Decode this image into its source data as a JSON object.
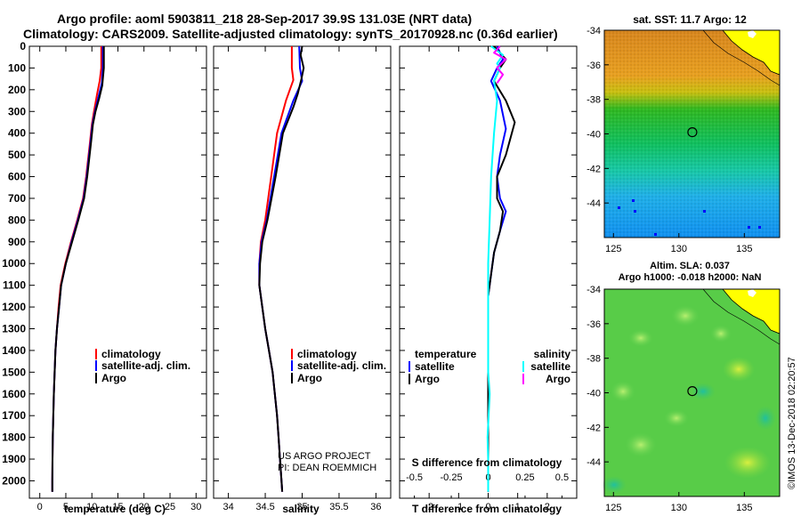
{
  "header": {
    "line1": "Argo profile: aoml 5903811_218 28-Sep-2017 39.9S 131.03E (NRT data)",
    "line2": "Climatology: CARS2009. Satellite-adjusted climatology: synTS_20170928.nc (0.36d earlier)"
  },
  "credit": {
    "line1": "US ARGO PROJECT",
    "line2": "PI: DEAN ROEMMICH"
  },
  "watermark": "©IMOS 13-Dec-2018 02:20:57",
  "colors": {
    "climatology": "#ff0000",
    "satellite": "#0000ff",
    "argo": "#000000",
    "sat_salinity": "#00ffff",
    "argo_salinity": "#ff00ff"
  },
  "chart_data": [
    {
      "type": "line",
      "id": "temperature",
      "xlabel": "temperature (deg C)",
      "ylabel": "pressure",
      "xlim": [
        -2,
        32
      ],
      "ylim": [
        0,
        2080
      ],
      "xticks": [
        0,
        5,
        10,
        15,
        20,
        25,
        30
      ],
      "yticks": [
        0,
        100,
        200,
        300,
        400,
        500,
        600,
        700,
        800,
        900,
        1000,
        1100,
        1200,
        1300,
        1400,
        1500,
        1600,
        1700,
        1800,
        1900,
        2000
      ],
      "legend": [
        "climatology",
        "satellite-adj. clim.",
        "Argo"
      ],
      "series": [
        {
          "name": "climatology",
          "points": [
            [
              11.8,
              0
            ],
            [
              11.8,
              100
            ],
            [
              11.5,
              160
            ],
            [
              11.0,
              220
            ],
            [
              10.4,
              300
            ],
            [
              10.0,
              360
            ],
            [
              9.6,
              450
            ],
            [
              8.9,
              600
            ],
            [
              8.3,
              700
            ],
            [
              7.2,
              800
            ],
            [
              6.0,
              900
            ],
            [
              4.9,
              1000
            ],
            [
              4.0,
              1100
            ],
            [
              3.6,
              1200
            ],
            [
              3.3,
              1300
            ],
            [
              3.0,
              1400
            ],
            [
              2.85,
              1500
            ],
            [
              2.7,
              1600
            ],
            [
              2.6,
              1700
            ],
            [
              2.5,
              1800
            ],
            [
              2.45,
              1900
            ],
            [
              2.4,
              2000
            ],
            [
              2.4,
              2050
            ]
          ]
        },
        {
          "name": "satellite-adj. clim.",
          "points": [
            [
              12.1,
              0
            ],
            [
              12.1,
              100
            ],
            [
              11.9,
              170
            ],
            [
              11.3,
              230
            ],
            [
              10.6,
              300
            ],
            [
              10.1,
              360
            ],
            [
              9.7,
              450
            ],
            [
              9.0,
              600
            ],
            [
              8.4,
              700
            ],
            [
              7.3,
              800
            ],
            [
              6.1,
              900
            ],
            [
              5.0,
              1000
            ],
            [
              4.1,
              1100
            ],
            [
              3.7,
              1200
            ],
            [
              3.3,
              1300
            ],
            [
              3.0,
              1400
            ],
            [
              2.85,
              1500
            ],
            [
              2.7,
              1600
            ],
            [
              2.6,
              1700
            ],
            [
              2.5,
              1800
            ],
            [
              2.45,
              1900
            ],
            [
              2.4,
              2000
            ],
            [
              2.4,
              2050
            ]
          ]
        },
        {
          "name": "Argo",
          "points": [
            [
              12.3,
              0
            ],
            [
              12.3,
              100
            ],
            [
              12.0,
              180
            ],
            [
              11.4,
              240
            ],
            [
              10.7,
              300
            ],
            [
              10.2,
              360
            ],
            [
              9.8,
              450
            ],
            [
              9.1,
              600
            ],
            [
              8.5,
              700
            ],
            [
              7.4,
              800
            ],
            [
              6.2,
              900
            ],
            [
              5.0,
              1000
            ],
            [
              4.1,
              1100
            ],
            [
              3.7,
              1200
            ],
            [
              3.3,
              1300
            ],
            [
              3.0,
              1400
            ],
            [
              2.85,
              1500
            ],
            [
              2.7,
              1600
            ],
            [
              2.6,
              1700
            ],
            [
              2.5,
              1800
            ],
            [
              2.45,
              1900
            ],
            [
              2.4,
              2000
            ],
            [
              2.4,
              2050
            ]
          ]
        }
      ]
    },
    {
      "type": "line",
      "id": "salinity",
      "xlabel": "salinity",
      "xlim": [
        33.8,
        36.2
      ],
      "ylim": [
        0,
        2080
      ],
      "xticks": [
        34,
        34.5,
        35,
        35.5,
        36
      ],
      "legend": [
        "climatology",
        "satellite-adj. clim.",
        "Argo"
      ],
      "series": [
        {
          "name": "climatology",
          "points": [
            [
              34.86,
              0
            ],
            [
              34.86,
              100
            ],
            [
              34.88,
              155
            ],
            [
              34.78,
              250
            ],
            [
              34.66,
              400
            ],
            [
              34.58,
              600
            ],
            [
              34.5,
              800
            ],
            [
              34.44,
              900
            ],
            [
              34.42,
              1000
            ],
            [
              34.42,
              1100
            ],
            [
              34.46,
              1200
            ],
            [
              34.5,
              1300
            ],
            [
              34.55,
              1400
            ],
            [
              34.6,
              1500
            ],
            [
              34.63,
              1600
            ],
            [
              34.66,
              1700
            ],
            [
              34.68,
              1800
            ],
            [
              34.7,
              1900
            ],
            [
              34.72,
              2000
            ],
            [
              34.73,
              2050
            ]
          ]
        },
        {
          "name": "satellite-adj. clim.",
          "points": [
            [
              34.96,
              0
            ],
            [
              34.97,
              100
            ],
            [
              35.0,
              160
            ],
            [
              34.88,
              250
            ],
            [
              34.72,
              400
            ],
            [
              34.62,
              600
            ],
            [
              34.52,
              800
            ],
            [
              34.45,
              900
            ],
            [
              34.42,
              1000
            ],
            [
              34.42,
              1100
            ],
            [
              34.46,
              1200
            ],
            [
              34.5,
              1300
            ],
            [
              34.55,
              1400
            ],
            [
              34.6,
              1500
            ],
            [
              34.63,
              1600
            ],
            [
              34.66,
              1700
            ],
            [
              34.68,
              1800
            ],
            [
              34.7,
              1900
            ],
            [
              34.72,
              2000
            ],
            [
              34.73,
              2050
            ]
          ]
        },
        {
          "name": "Argo",
          "points": [
            [
              35.0,
              0
            ],
            [
              34.98,
              40
            ],
            [
              35.02,
              100
            ],
            [
              34.99,
              150
            ],
            [
              34.94,
              220
            ],
            [
              34.88,
              280
            ],
            [
              34.74,
              400
            ],
            [
              34.64,
              600
            ],
            [
              34.53,
              800
            ],
            [
              34.46,
              900
            ],
            [
              34.43,
              1000
            ],
            [
              34.42,
              1100
            ],
            [
              34.46,
              1200
            ],
            [
              34.5,
              1300
            ],
            [
              34.55,
              1400
            ],
            [
              34.6,
              1500
            ],
            [
              34.63,
              1600
            ],
            [
              34.66,
              1700
            ],
            [
              34.68,
              1800
            ],
            [
              34.7,
              1900
            ],
            [
              34.72,
              2000
            ],
            [
              34.73,
              2050
            ]
          ]
        }
      ]
    },
    {
      "type": "line",
      "id": "difference",
      "xlabel": "T difference from climatology",
      "xlabel2": "S difference from climatology",
      "xlim": [
        -3,
        3
      ],
      "ylim": [
        0,
        2080
      ],
      "xticks": [
        -2,
        -1,
        0,
        1,
        2
      ],
      "xticks2": [
        -0.5,
        -0.25,
        0,
        0.25,
        0.5
      ],
      "xtick2_labels": [
        "-0.5",
        "-0.25",
        "0",
        "0.25",
        "0.5"
      ],
      "legend_temperature_title": "temperature",
      "legend_salinity_title": "salinity",
      "legend_temperature": [
        "satellite",
        "Argo"
      ],
      "legend_salinity": [
        "satellite",
        "Argo"
      ],
      "series": [
        {
          "name": "T satellite",
          "points": [
            [
              0.3,
              0
            ],
            [
              0.5,
              60
            ],
            [
              0.3,
              100
            ],
            [
              0.1,
              160
            ],
            [
              0.4,
              250
            ],
            [
              0.6,
              380
            ],
            [
              0.4,
              500
            ],
            [
              0.3,
              600
            ],
            [
              0.4,
              700
            ],
            [
              0.6,
              760
            ],
            [
              0.4,
              850
            ],
            [
              0.2,
              950
            ],
            [
              0.1,
              1050
            ],
            [
              0,
              1150
            ],
            [
              0,
              1300
            ],
            [
              0,
              1500
            ],
            [
              0,
              1700
            ],
            [
              0,
              1900
            ],
            [
              0,
              2000
            ],
            [
              0,
              2050
            ]
          ]
        },
        {
          "name": "T Argo",
          "points": [
            [
              0.2,
              0
            ],
            [
              0.6,
              60
            ],
            [
              0.4,
              100
            ],
            [
              0.2,
              160
            ],
            [
              0.6,
              250
            ],
            [
              0.9,
              350
            ],
            [
              0.6,
              500
            ],
            [
              0.3,
              600
            ],
            [
              0.3,
              700
            ],
            [
              0.5,
              760
            ],
            [
              0.4,
              850
            ],
            [
              0.2,
              950
            ],
            [
              0.1,
              1050
            ],
            [
              0,
              1150
            ],
            [
              0,
              1300
            ],
            [
              0,
              1500
            ],
            [
              0,
              1700
            ],
            [
              0,
              1900
            ],
            [
              0,
              2000
            ],
            [
              0,
              2050
            ]
          ]
        },
        {
          "name": "S satellite",
          "points": [
            [
              0.1,
              0
            ],
            [
              0.5,
              40
            ],
            [
              0.3,
              80
            ],
            [
              0.4,
              100
            ],
            [
              0.2,
              160
            ],
            [
              0.3,
              250
            ],
            [
              0.2,
              400
            ],
            [
              0.1,
              600
            ],
            [
              0.05,
              800
            ],
            [
              0,
              1000
            ],
            [
              0,
              1200
            ],
            [
              0,
              1400
            ],
            [
              0,
              1500
            ],
            [
              0.05,
              1600
            ],
            [
              -0.02,
              1800
            ],
            [
              0,
              1900
            ],
            [
              0,
              2050
            ]
          ]
        },
        {
          "name": "S Argo",
          "points": [
            [
              0.4,
              0
            ],
            [
              0.2,
              30
            ],
            [
              0.6,
              60
            ],
            [
              0.3,
              100
            ],
            [
              0.5,
              130
            ],
            [
              0.3,
              170
            ]
          ]
        }
      ]
    },
    {
      "type": "heatmap",
      "id": "sst-map",
      "title": "sat. SST: 11.7 Argo: 12",
      "xlim": [
        124.3,
        137.7
      ],
      "ylim": [
        -46,
        -34
      ],
      "xticks": [
        125,
        130,
        135
      ],
      "yticks": [
        -34,
        -36,
        -38,
        -40,
        -42,
        -44
      ],
      "ytick_labels": [
        "-34",
        "-36",
        "-38",
        "-40",
        "-42",
        "-44"
      ],
      "argo_position": [
        131.03,
        -39.9
      ]
    },
    {
      "type": "heatmap",
      "id": "sla-map",
      "title_line1": "Altim. SLA: 0.037",
      "title_line2": "Argo h1000: -0.018 h2000: NaN",
      "xlim": [
        124.3,
        137.7
      ],
      "ylim": [
        -46,
        -34
      ],
      "xticks": [
        125,
        130,
        135
      ],
      "yticks": [
        -34,
        -36,
        -38,
        -40,
        -42,
        -44
      ],
      "ytick_labels": [
        "-34",
        "-36",
        "-38",
        "-40",
        "-42",
        "-44"
      ],
      "argo_position": [
        131.03,
        -39.9
      ]
    }
  ]
}
